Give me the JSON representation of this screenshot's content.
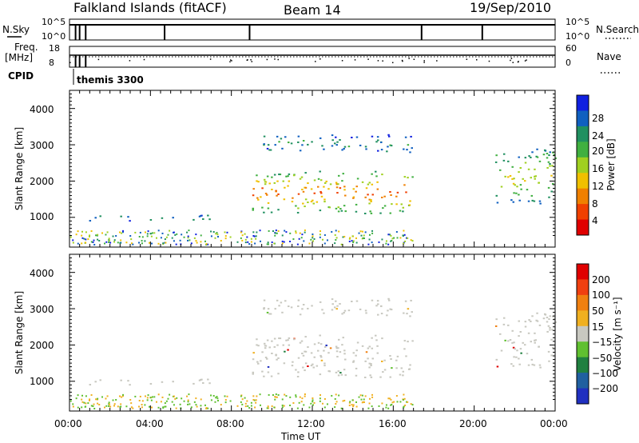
{
  "header": {
    "station": "Falkland Islands (fitACF)",
    "beam": "Beam 14",
    "date": "19/Sep/2010"
  },
  "top_panels": {
    "nsky_label": "N.Sky",
    "nsky_ticks": [
      "10^5",
      "10^0"
    ],
    "nsearch_label": "N.Search",
    "nsearch_ticks": [
      "10^5",
      "10^0"
    ],
    "freq_label_1": "Freq.",
    "freq_label_2": "[MHz]",
    "freq_ticks": [
      "18",
      "8"
    ],
    "nave_label": "Nave",
    "nave_ticks": [
      "60",
      "0"
    ],
    "cpid_label": "CPID",
    "cpid_value": "themis 3300"
  },
  "power_panel": {
    "ylabel": "Slant Range [km]",
    "yticks": [
      "4000",
      "3000",
      "2000",
      "1000"
    ],
    "colorbar_label": "Power [dB]",
    "colorbar_ticks": [
      "28",
      "24",
      "20",
      "16",
      "12",
      "8",
      "4"
    ],
    "colors": [
      "#1020e0",
      "#1060c0",
      "#209060",
      "#40b040",
      "#a0d020",
      "#f0c000",
      "#f08000",
      "#f04000",
      "#e00000"
    ]
  },
  "velocity_panel": {
    "ylabel": "Slant Range [km]",
    "yticks": [
      "4000",
      "3000",
      "2000",
      "1000"
    ],
    "colorbar_label": "Velocity [m s⁻¹]",
    "colorbar_ticks": [
      "200",
      "100",
      "50",
      "15",
      "−15",
      "−50",
      "−100",
      "−200"
    ],
    "colors": [
      "#2030c0",
      "#2060a0",
      "#208040",
      "#60c030",
      "#c8c8c0",
      "#f0b020",
      "#f08010",
      "#f04010",
      "#e00000"
    ]
  },
  "xaxis": {
    "label": "Time UT",
    "ticks": [
      "00:00",
      "04:00",
      "08:00",
      "12:00",
      "16:00",
      "20:00",
      "00:00"
    ]
  },
  "chart_data": {
    "type": "heatmap",
    "title": "Falkland Islands (fitACF)",
    "xlabel": "Time UT",
    "ylabel": "Slant Range [km]",
    "xlim": [
      0,
      24
    ],
    "ylim": [
      180,
      4500
    ],
    "power_range_db": [
      0,
      30
    ],
    "velocity_range": [
      -200,
      200
    ],
    "scatter_regions": [
      {
        "name": "early-echo",
        "t": [
          0.9,
          6.9
        ],
        "range": [
          920,
          1080
        ],
        "power_db": 6,
        "velocity": -10
      },
      {
        "name": "main-band",
        "t": [
          9.0,
          17.0
        ],
        "range": [
          1100,
          2300
        ],
        "power_db": 18,
        "velocity": 0
      },
      {
        "name": "upper-band",
        "t": [
          9.5,
          17.0
        ],
        "range": [
          2800,
          3300
        ],
        "power_db": 6,
        "velocity": 0
      },
      {
        "name": "evening-band",
        "t": [
          21.0,
          24.0
        ],
        "range": [
          1400,
          2900
        ],
        "power_db": 12,
        "velocity": -5
      }
    ],
    "nsky_spikes_hours": [
      0.3,
      0.5,
      0.8,
      4.7,
      8.9,
      17.4,
      20.4
    ],
    "freq_mhz": 10.5,
    "nave": 22
  }
}
